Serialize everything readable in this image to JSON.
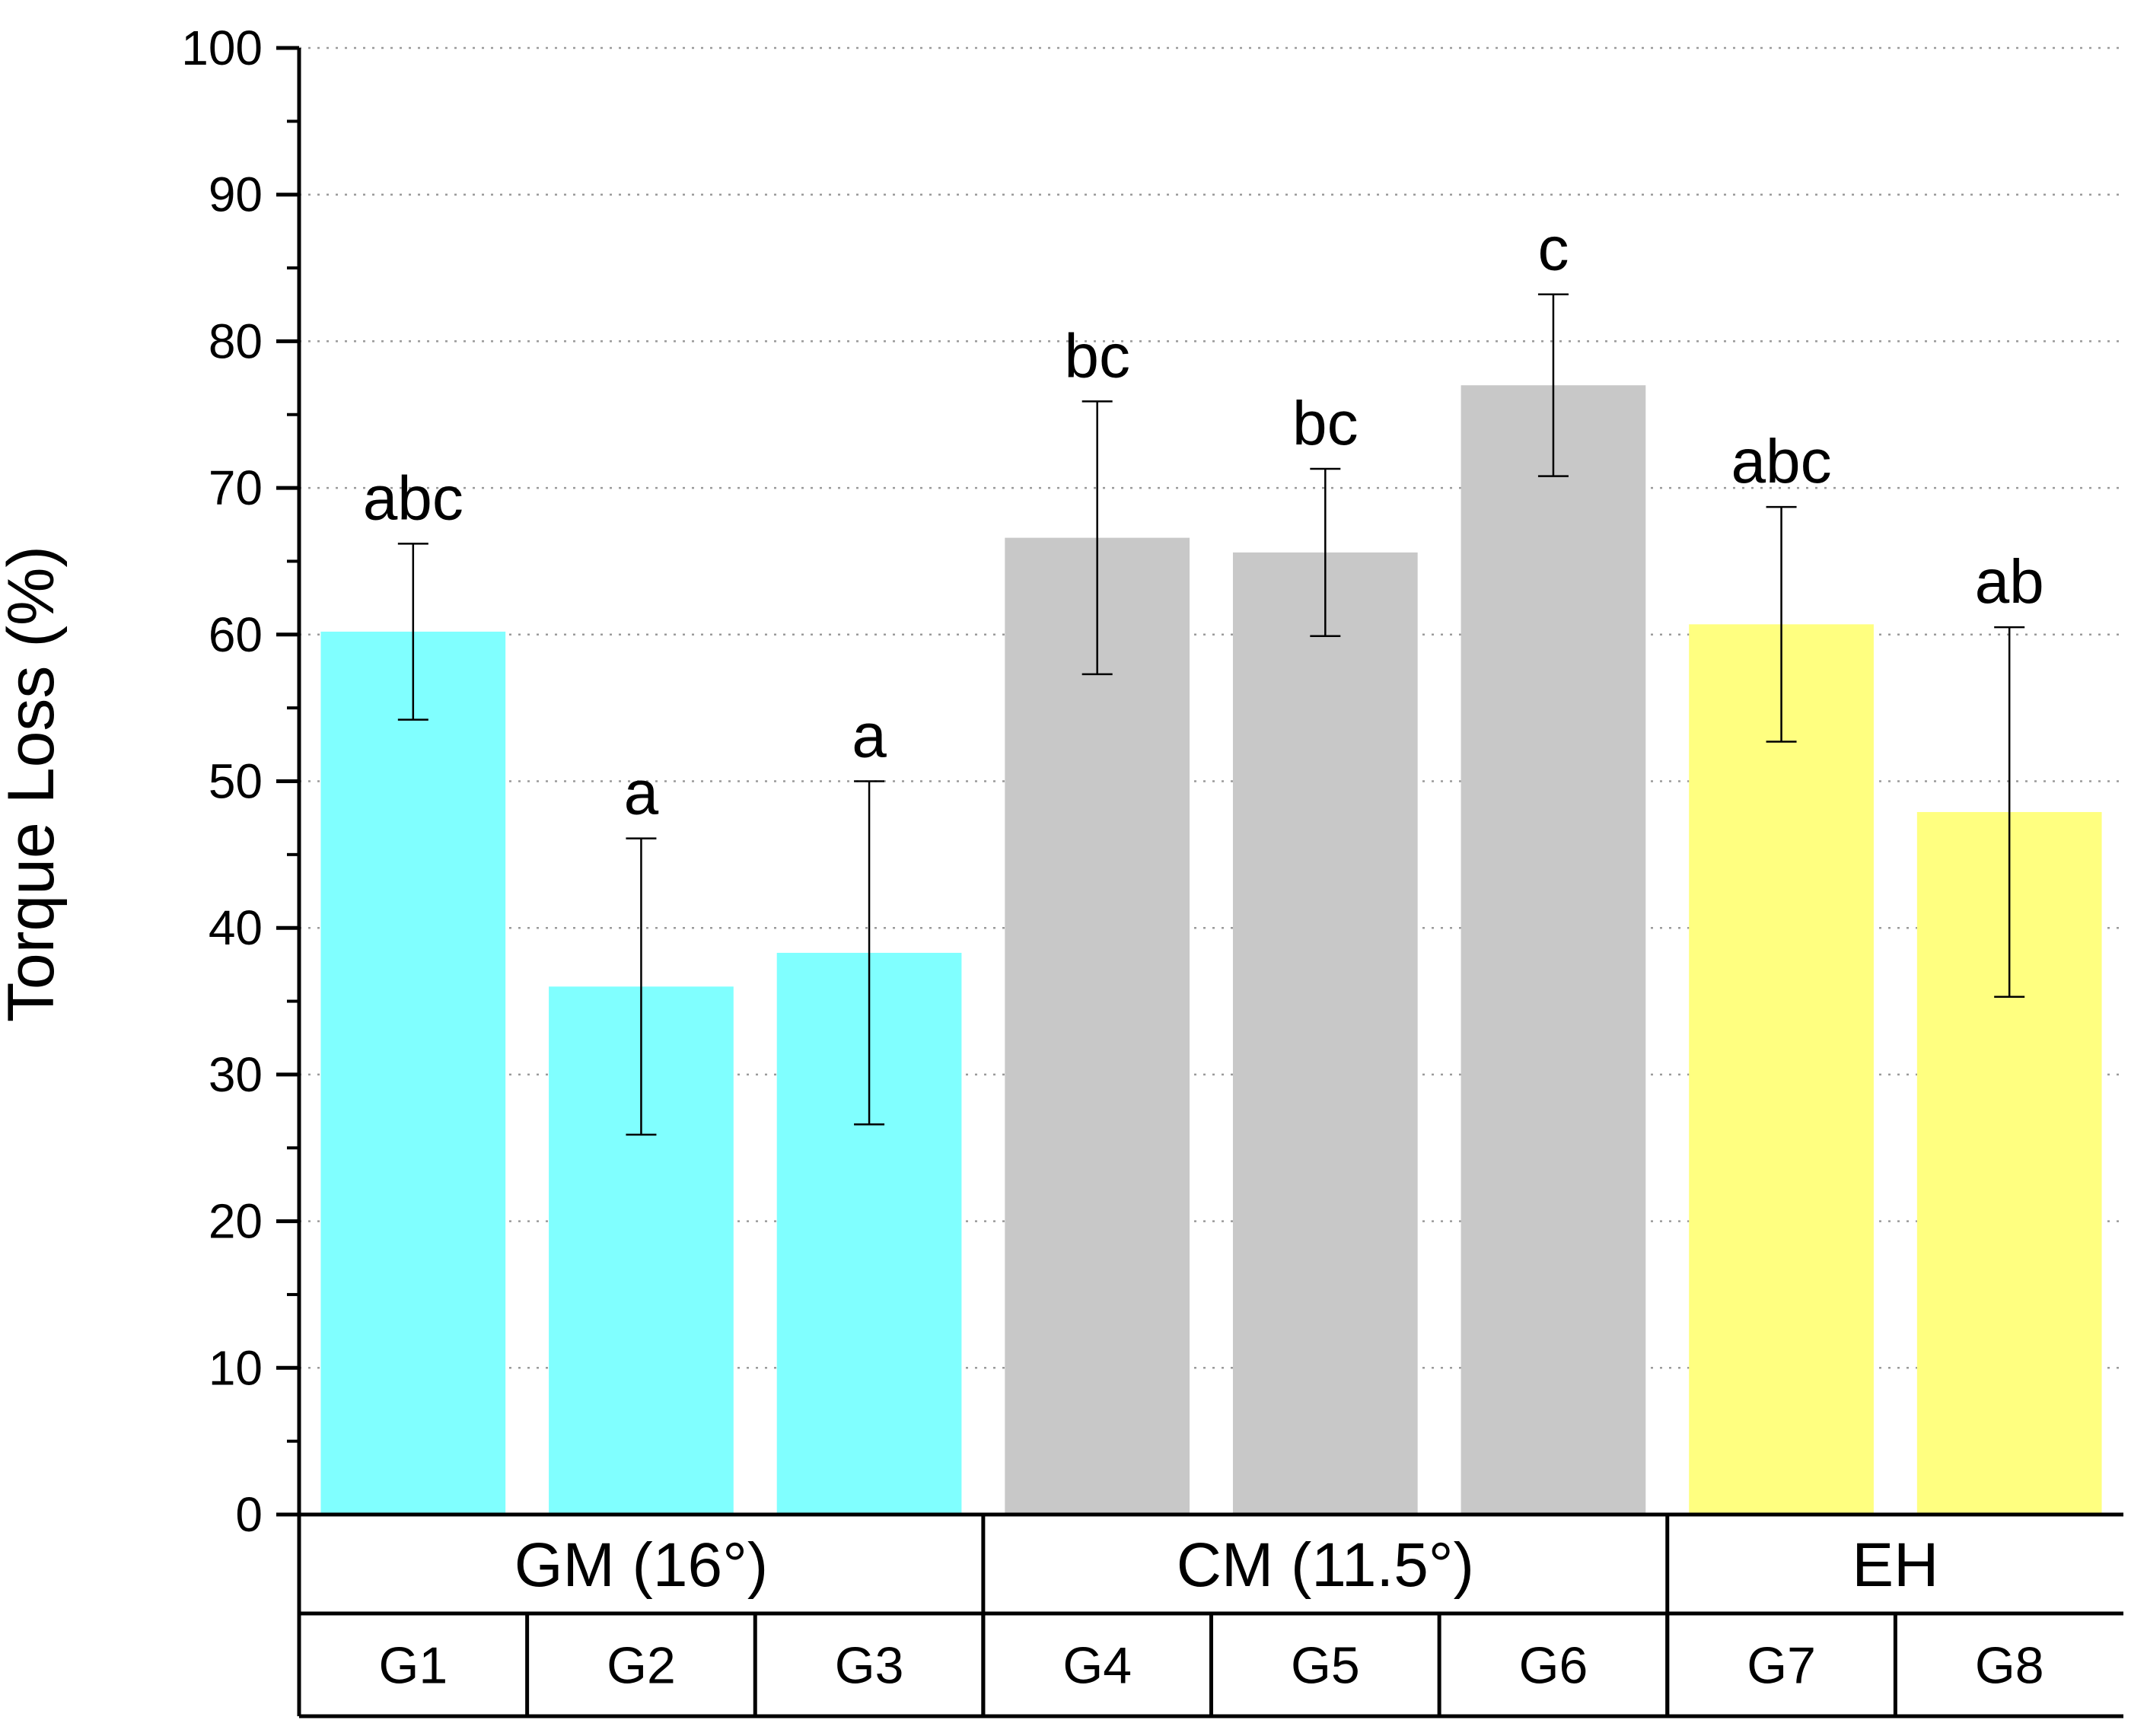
{
  "chart_data": {
    "type": "bar",
    "title": "",
    "xlabel": "",
    "ylabel": "Torque Loss (%)",
    "ylim": [
      0,
      100
    ],
    "yticks": [
      0,
      10,
      20,
      30,
      40,
      50,
      60,
      70,
      80,
      90,
      100
    ],
    "grid": true,
    "legend": "none",
    "categories": [
      "G1",
      "G2",
      "G3",
      "G4",
      "G5",
      "G6",
      "G7",
      "G8"
    ],
    "values": [
      60.2,
      36.0,
      38.3,
      66.6,
      65.6,
      77.0,
      60.7,
      47.9
    ],
    "errors": [
      6.0,
      10.1,
      11.7,
      9.3,
      5.7,
      6.2,
      8.0,
      12.6
    ],
    "significance": [
      "abc",
      "a",
      "a",
      "bc",
      "bc",
      "c",
      "abc",
      "ab"
    ],
    "bar_colors": [
      "#80ffff",
      "#80ffff",
      "#80ffff",
      "#c8c8c8",
      "#c8c8c8",
      "#c8c8c8",
      "#ffff80",
      "#ffff80"
    ],
    "groups": [
      {
        "label": "GM (16°)",
        "categories": [
          "G1",
          "G2",
          "G3"
        ],
        "color": "#80ffff"
      },
      {
        "label": "CM (11.5°)",
        "categories": [
          "G4",
          "G5",
          "G6"
        ],
        "color": "#c8c8c8"
      },
      {
        "label": "EH",
        "categories": [
          "G7",
          "G8"
        ],
        "color": "#ffff80"
      }
    ]
  }
}
